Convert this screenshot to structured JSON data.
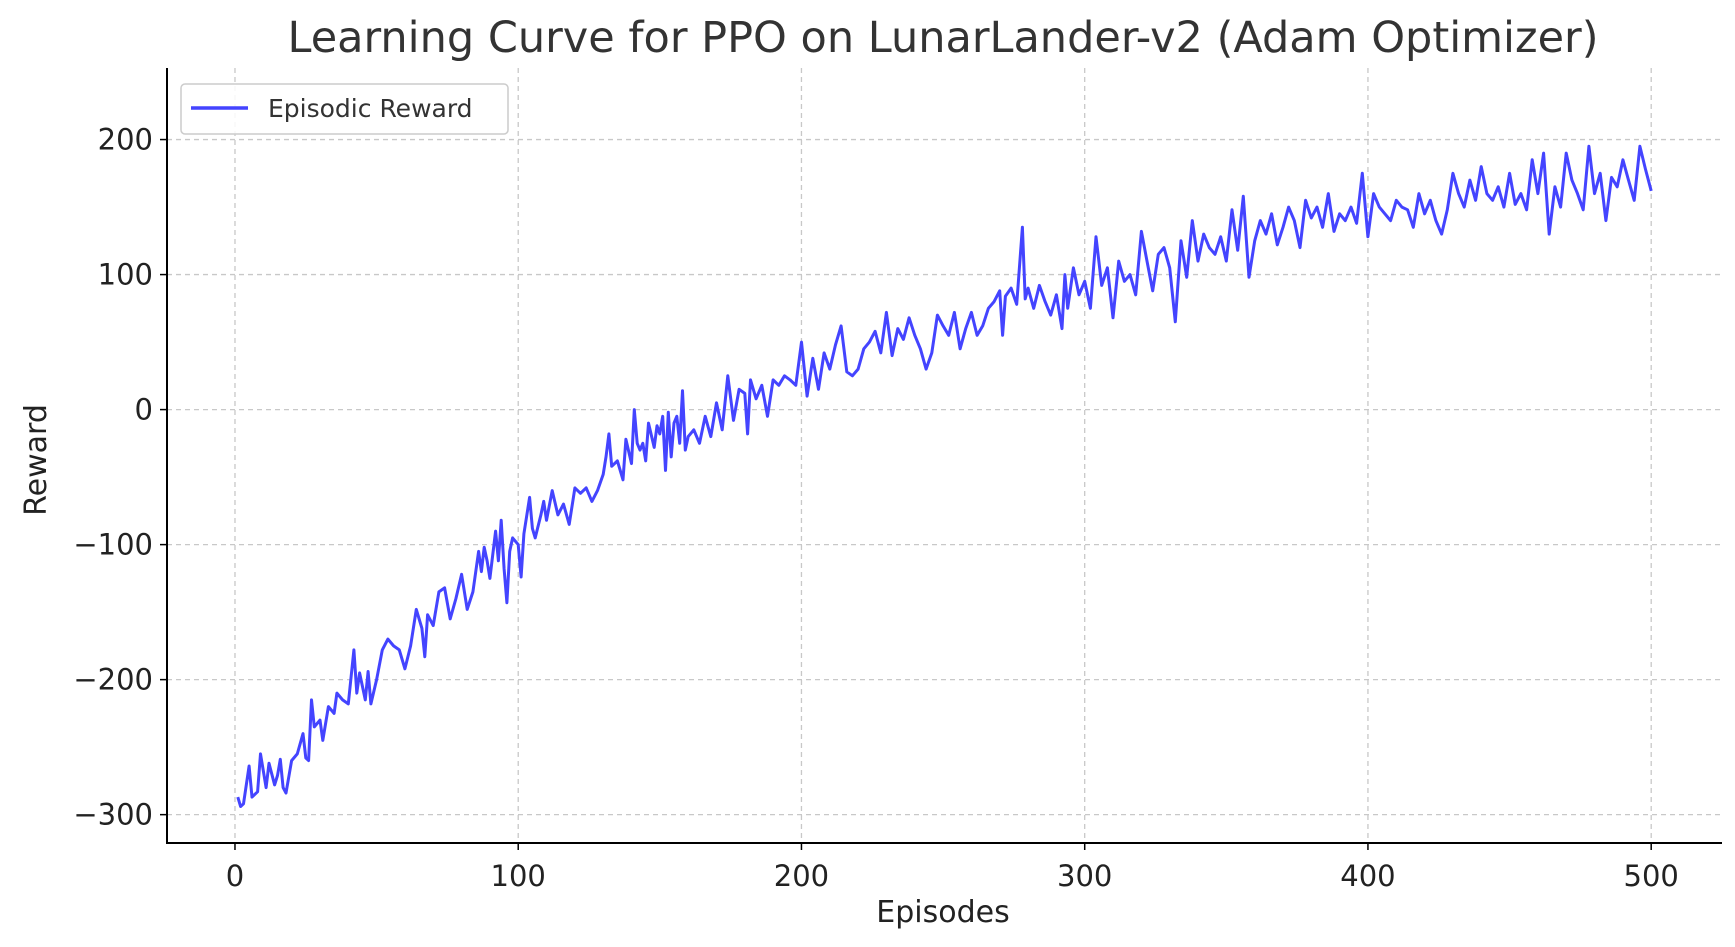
{
  "chart_data": {
    "type": "line",
    "title": "Learning Curve for PPO on LunarLander-v2 (Adam Optimizer)",
    "xlabel": "Episodes",
    "ylabel": "Reward",
    "xlim": [
      -24,
      525
    ],
    "ylim": [
      -321,
      253
    ],
    "xticks": [
      0,
      100,
      200,
      300,
      400,
      500
    ],
    "yticks": [
      -300,
      -200,
      -100,
      0,
      100,
      200
    ],
    "xtick_labels": [
      "0",
      "100",
      "200",
      "300",
      "400",
      "500"
    ],
    "ytick_labels": [
      "−300",
      "−200",
      "−100",
      "0",
      "100",
      "200"
    ],
    "grid": true,
    "legend": {
      "position": "top-left"
    },
    "series": [
      {
        "name": "Episodic Reward",
        "color": "#4444ff",
        "points": [
          [
            1,
            -287
          ],
          [
            2,
            -294
          ],
          [
            3,
            -292
          ],
          [
            5,
            -264
          ],
          [
            6,
            -287
          ],
          [
            8,
            -283
          ],
          [
            9,
            -255
          ],
          [
            11,
            -280
          ],
          [
            12,
            -262
          ],
          [
            14,
            -278
          ],
          [
            15,
            -271
          ],
          [
            16,
            -259
          ],
          [
            17,
            -280
          ],
          [
            18,
            -284
          ],
          [
            20,
            -260
          ],
          [
            22,
            -255
          ],
          [
            24,
            -240
          ],
          [
            25,
            -258
          ],
          [
            26,
            -260
          ],
          [
            27,
            -215
          ],
          [
            28,
            -235
          ],
          [
            30,
            -230
          ],
          [
            31,
            -245
          ],
          [
            33,
            -220
          ],
          [
            35,
            -225
          ],
          [
            36,
            -210
          ],
          [
            38,
            -215
          ],
          [
            40,
            -218
          ],
          [
            42,
            -178
          ],
          [
            43,
            -210
          ],
          [
            44,
            -195
          ],
          [
            46,
            -215
          ],
          [
            47,
            -194
          ],
          [
            48,
            -218
          ],
          [
            50,
            -200
          ],
          [
            52,
            -178
          ],
          [
            54,
            -170
          ],
          [
            56,
            -175
          ],
          [
            58,
            -178
          ],
          [
            60,
            -192
          ],
          [
            62,
            -175
          ],
          [
            64,
            -148
          ],
          [
            66,
            -162
          ],
          [
            67,
            -183
          ],
          [
            68,
            -152
          ],
          [
            70,
            -160
          ],
          [
            72,
            -135
          ],
          [
            74,
            -132
          ],
          [
            76,
            -155
          ],
          [
            78,
            -140
          ],
          [
            80,
            -122
          ],
          [
            82,
            -148
          ],
          [
            84,
            -135
          ],
          [
            86,
            -105
          ],
          [
            87,
            -120
          ],
          [
            88,
            -102
          ],
          [
            89,
            -112
          ],
          [
            90,
            -125
          ],
          [
            92,
            -90
          ],
          [
            93,
            -112
          ],
          [
            94,
            -82
          ],
          [
            95,
            -118
          ],
          [
            96,
            -143
          ],
          [
            97,
            -105
          ],
          [
            98,
            -95
          ],
          [
            100,
            -100
          ],
          [
            101,
            -124
          ],
          [
            102,
            -92
          ],
          [
            104,
            -65
          ],
          [
            105,
            -88
          ],
          [
            106,
            -95
          ],
          [
            108,
            -78
          ],
          [
            109,
            -68
          ],
          [
            110,
            -82
          ],
          [
            112,
            -60
          ],
          [
            114,
            -78
          ],
          [
            116,
            -70
          ],
          [
            118,
            -85
          ],
          [
            120,
            -58
          ],
          [
            122,
            -62
          ],
          [
            124,
            -58
          ],
          [
            126,
            -68
          ],
          [
            128,
            -60
          ],
          [
            130,
            -48
          ],
          [
            131,
            -35
          ],
          [
            132,
            -18
          ],
          [
            133,
            -42
          ],
          [
            135,
            -38
          ],
          [
            137,
            -52
          ],
          [
            138,
            -22
          ],
          [
            140,
            -40
          ],
          [
            141,
            0
          ],
          [
            142,
            -25
          ],
          [
            143,
            -30
          ],
          [
            144,
            -25
          ],
          [
            145,
            -38
          ],
          [
            146,
            -10
          ],
          [
            148,
            -28
          ],
          [
            149,
            -12
          ],
          [
            150,
            -18
          ],
          [
            151,
            -5
          ],
          [
            152,
            -45
          ],
          [
            153,
            -2
          ],
          [
            154,
            -35
          ],
          [
            155,
            -10
          ],
          [
            156,
            -5
          ],
          [
            157,
            -25
          ],
          [
            158,
            14
          ],
          [
            159,
            -30
          ],
          [
            160,
            -20
          ],
          [
            162,
            -15
          ],
          [
            164,
            -25
          ],
          [
            166,
            -5
          ],
          [
            168,
            -20
          ],
          [
            170,
            5
          ],
          [
            172,
            -15
          ],
          [
            174,
            25
          ],
          [
            176,
            -8
          ],
          [
            178,
            15
          ],
          [
            180,
            12
          ],
          [
            181,
            -18
          ],
          [
            182,
            22
          ],
          [
            184,
            8
          ],
          [
            186,
            18
          ],
          [
            188,
            -5
          ],
          [
            190,
            22
          ],
          [
            192,
            18
          ],
          [
            194,
            25
          ],
          [
            196,
            22
          ],
          [
            198,
            18
          ],
          [
            200,
            50
          ],
          [
            202,
            10
          ],
          [
            204,
            38
          ],
          [
            206,
            15
          ],
          [
            208,
            42
          ],
          [
            210,
            30
          ],
          [
            212,
            48
          ],
          [
            214,
            62
          ],
          [
            216,
            28
          ],
          [
            218,
            25
          ],
          [
            220,
            30
          ],
          [
            222,
            45
          ],
          [
            224,
            50
          ],
          [
            226,
            58
          ],
          [
            228,
            42
          ],
          [
            230,
            72
          ],
          [
            232,
            40
          ],
          [
            234,
            60
          ],
          [
            236,
            52
          ],
          [
            238,
            68
          ],
          [
            240,
            55
          ],
          [
            242,
            45
          ],
          [
            244,
            30
          ],
          [
            246,
            42
          ],
          [
            248,
            70
          ],
          [
            250,
            62
          ],
          [
            252,
            55
          ],
          [
            254,
            72
          ],
          [
            256,
            45
          ],
          [
            258,
            60
          ],
          [
            260,
            72
          ],
          [
            262,
            55
          ],
          [
            264,
            62
          ],
          [
            266,
            75
          ],
          [
            268,
            80
          ],
          [
            270,
            88
          ],
          [
            271,
            55
          ],
          [
            272,
            84
          ],
          [
            274,
            90
          ],
          [
            276,
            78
          ],
          [
            278,
            135
          ],
          [
            279,
            82
          ],
          [
            280,
            90
          ],
          [
            282,
            75
          ],
          [
            284,
            92
          ],
          [
            286,
            80
          ],
          [
            288,
            70
          ],
          [
            290,
            85
          ],
          [
            292,
            60
          ],
          [
            293,
            100
          ],
          [
            294,
            75
          ],
          [
            296,
            105
          ],
          [
            298,
            85
          ],
          [
            300,
            95
          ],
          [
            302,
            75
          ],
          [
            304,
            128
          ],
          [
            306,
            92
          ],
          [
            308,
            105
          ],
          [
            310,
            68
          ],
          [
            312,
            110
          ],
          [
            314,
            95
          ],
          [
            316,
            100
          ],
          [
            318,
            85
          ],
          [
            320,
            132
          ],
          [
            322,
            110
          ],
          [
            324,
            88
          ],
          [
            326,
            115
          ],
          [
            328,
            120
          ],
          [
            330,
            105
          ],
          [
            332,
            65
          ],
          [
            334,
            125
          ],
          [
            336,
            98
          ],
          [
            338,
            140
          ],
          [
            340,
            110
          ],
          [
            342,
            130
          ],
          [
            344,
            120
          ],
          [
            346,
            115
          ],
          [
            348,
            128
          ],
          [
            350,
            110
          ],
          [
            352,
            148
          ],
          [
            354,
            118
          ],
          [
            356,
            158
          ],
          [
            358,
            98
          ],
          [
            360,
            125
          ],
          [
            362,
            140
          ],
          [
            364,
            130
          ],
          [
            366,
            145
          ],
          [
            368,
            122
          ],
          [
            370,
            135
          ],
          [
            372,
            150
          ],
          [
            374,
            140
          ],
          [
            376,
            120
          ],
          [
            378,
            155
          ],
          [
            380,
            142
          ],
          [
            382,
            150
          ],
          [
            384,
            135
          ],
          [
            386,
            160
          ],
          [
            388,
            132
          ],
          [
            390,
            145
          ],
          [
            392,
            140
          ],
          [
            394,
            150
          ],
          [
            396,
            138
          ],
          [
            398,
            175
          ],
          [
            400,
            128
          ],
          [
            402,
            160
          ],
          [
            404,
            150
          ],
          [
            406,
            145
          ],
          [
            408,
            140
          ],
          [
            410,
            155
          ],
          [
            412,
            150
          ],
          [
            414,
            148
          ],
          [
            416,
            135
          ],
          [
            418,
            160
          ],
          [
            420,
            145
          ],
          [
            422,
            155
          ],
          [
            424,
            140
          ],
          [
            426,
            130
          ],
          [
            428,
            148
          ],
          [
            430,
            175
          ],
          [
            432,
            160
          ],
          [
            434,
            150
          ],
          [
            436,
            170
          ],
          [
            438,
            155
          ],
          [
            440,
            180
          ],
          [
            442,
            160
          ],
          [
            444,
            155
          ],
          [
            446,
            165
          ],
          [
            448,
            150
          ],
          [
            450,
            175
          ],
          [
            452,
            152
          ],
          [
            454,
            160
          ],
          [
            456,
            148
          ],
          [
            458,
            185
          ],
          [
            460,
            160
          ],
          [
            462,
            190
          ],
          [
            464,
            130
          ],
          [
            466,
            165
          ],
          [
            468,
            150
          ],
          [
            470,
            190
          ],
          [
            472,
            170
          ],
          [
            474,
            160
          ],
          [
            476,
            148
          ],
          [
            478,
            195
          ],
          [
            480,
            160
          ],
          [
            482,
            175
          ],
          [
            484,
            140
          ],
          [
            486,
            172
          ],
          [
            488,
            165
          ],
          [
            490,
            185
          ],
          [
            492,
            170
          ],
          [
            494,
            155
          ],
          [
            496,
            195
          ],
          [
            498,
            178
          ],
          [
            500,
            162
          ]
        ]
      }
    ]
  }
}
